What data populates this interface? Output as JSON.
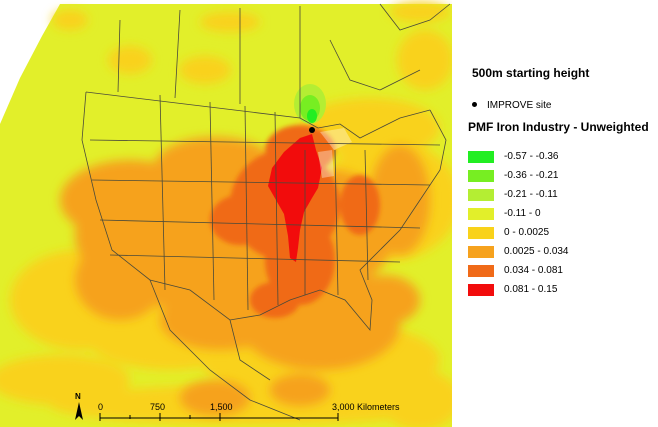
{
  "subtitle": "500m starting height",
  "site_marker": {
    "label": "IMPROVE site",
    "color": "#000000"
  },
  "legend": {
    "title": "PMF Iron Industry - Unweighted",
    "bins": [
      {
        "label": "-0.57 - -0.36",
        "color": "#22ee22"
      },
      {
        "label": "-0.36 - -0.21",
        "color": "#77ee22"
      },
      {
        "label": "-0.21 - -0.11",
        "color": "#b4ee33"
      },
      {
        "label": "-0.11 - 0",
        "color": "#e2ef2a"
      },
      {
        "label": "0 - 0.0025",
        "color": "#f9d21a"
      },
      {
        "label": "0.0025 - 0.034",
        "color": "#f6a21d"
      },
      {
        "label": "0.034 - 0.081",
        "color": "#f06a18"
      },
      {
        "label": "0.081 - 0.15",
        "color": "#f20c0c"
      }
    ]
  },
  "scale_bar": {
    "ticks": [
      "0",
      "750",
      "1,500",
      "3,000 Kilometers"
    ]
  },
  "north_arrow": {
    "label": "N"
  },
  "colors": {
    "background": "#ffffff",
    "boundary_lines": "#4a4a3a",
    "water_edge": "#ffffff"
  }
}
